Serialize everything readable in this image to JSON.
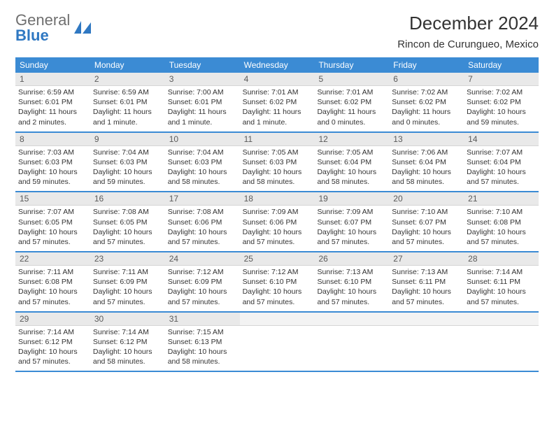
{
  "logo": {
    "word1": "General",
    "word2": "Blue"
  },
  "title": "December 2024",
  "location": "Rincon de Curungueo, Mexico",
  "colors": {
    "accent": "#3b8bd4",
    "header_bg": "#3b8bd4",
    "daynum_bg": "#e9e9e9",
    "text": "#333333",
    "logo_gray": "#6f6f6f",
    "logo_blue": "#2f78c2"
  },
  "days_of_week": [
    "Sunday",
    "Monday",
    "Tuesday",
    "Wednesday",
    "Thursday",
    "Friday",
    "Saturday"
  ],
  "weeks": [
    [
      {
        "n": "1",
        "sr": "6:59 AM",
        "ss": "6:01 PM",
        "dl": "11 hours and 2 minutes."
      },
      {
        "n": "2",
        "sr": "6:59 AM",
        "ss": "6:01 PM",
        "dl": "11 hours and 1 minute."
      },
      {
        "n": "3",
        "sr": "7:00 AM",
        "ss": "6:01 PM",
        "dl": "11 hours and 1 minute."
      },
      {
        "n": "4",
        "sr": "7:01 AM",
        "ss": "6:02 PM",
        "dl": "11 hours and 1 minute."
      },
      {
        "n": "5",
        "sr": "7:01 AM",
        "ss": "6:02 PM",
        "dl": "11 hours and 0 minutes."
      },
      {
        "n": "6",
        "sr": "7:02 AM",
        "ss": "6:02 PM",
        "dl": "11 hours and 0 minutes."
      },
      {
        "n": "7",
        "sr": "7:02 AM",
        "ss": "6:02 PM",
        "dl": "10 hours and 59 minutes."
      }
    ],
    [
      {
        "n": "8",
        "sr": "7:03 AM",
        "ss": "6:03 PM",
        "dl": "10 hours and 59 minutes."
      },
      {
        "n": "9",
        "sr": "7:04 AM",
        "ss": "6:03 PM",
        "dl": "10 hours and 59 minutes."
      },
      {
        "n": "10",
        "sr": "7:04 AM",
        "ss": "6:03 PM",
        "dl": "10 hours and 58 minutes."
      },
      {
        "n": "11",
        "sr": "7:05 AM",
        "ss": "6:03 PM",
        "dl": "10 hours and 58 minutes."
      },
      {
        "n": "12",
        "sr": "7:05 AM",
        "ss": "6:04 PM",
        "dl": "10 hours and 58 minutes."
      },
      {
        "n": "13",
        "sr": "7:06 AM",
        "ss": "6:04 PM",
        "dl": "10 hours and 58 minutes."
      },
      {
        "n": "14",
        "sr": "7:07 AM",
        "ss": "6:04 PM",
        "dl": "10 hours and 57 minutes."
      }
    ],
    [
      {
        "n": "15",
        "sr": "7:07 AM",
        "ss": "6:05 PM",
        "dl": "10 hours and 57 minutes."
      },
      {
        "n": "16",
        "sr": "7:08 AM",
        "ss": "6:05 PM",
        "dl": "10 hours and 57 minutes."
      },
      {
        "n": "17",
        "sr": "7:08 AM",
        "ss": "6:06 PM",
        "dl": "10 hours and 57 minutes."
      },
      {
        "n": "18",
        "sr": "7:09 AM",
        "ss": "6:06 PM",
        "dl": "10 hours and 57 minutes."
      },
      {
        "n": "19",
        "sr": "7:09 AM",
        "ss": "6:07 PM",
        "dl": "10 hours and 57 minutes."
      },
      {
        "n": "20",
        "sr": "7:10 AM",
        "ss": "6:07 PM",
        "dl": "10 hours and 57 minutes."
      },
      {
        "n": "21",
        "sr": "7:10 AM",
        "ss": "6:08 PM",
        "dl": "10 hours and 57 minutes."
      }
    ],
    [
      {
        "n": "22",
        "sr": "7:11 AM",
        "ss": "6:08 PM",
        "dl": "10 hours and 57 minutes."
      },
      {
        "n": "23",
        "sr": "7:11 AM",
        "ss": "6:09 PM",
        "dl": "10 hours and 57 minutes."
      },
      {
        "n": "24",
        "sr": "7:12 AM",
        "ss": "6:09 PM",
        "dl": "10 hours and 57 minutes."
      },
      {
        "n": "25",
        "sr": "7:12 AM",
        "ss": "6:10 PM",
        "dl": "10 hours and 57 minutes."
      },
      {
        "n": "26",
        "sr": "7:13 AM",
        "ss": "6:10 PM",
        "dl": "10 hours and 57 minutes."
      },
      {
        "n": "27",
        "sr": "7:13 AM",
        "ss": "6:11 PM",
        "dl": "10 hours and 57 minutes."
      },
      {
        "n": "28",
        "sr": "7:14 AM",
        "ss": "6:11 PM",
        "dl": "10 hours and 57 minutes."
      }
    ],
    [
      {
        "n": "29",
        "sr": "7:14 AM",
        "ss": "6:12 PM",
        "dl": "10 hours and 57 minutes."
      },
      {
        "n": "30",
        "sr": "7:14 AM",
        "ss": "6:12 PM",
        "dl": "10 hours and 58 minutes."
      },
      {
        "n": "31",
        "sr": "7:15 AM",
        "ss": "6:13 PM",
        "dl": "10 hours and 58 minutes."
      },
      null,
      null,
      null,
      null
    ]
  ],
  "labels": {
    "sunrise": "Sunrise:",
    "sunset": "Sunset:",
    "daylight": "Daylight:"
  }
}
